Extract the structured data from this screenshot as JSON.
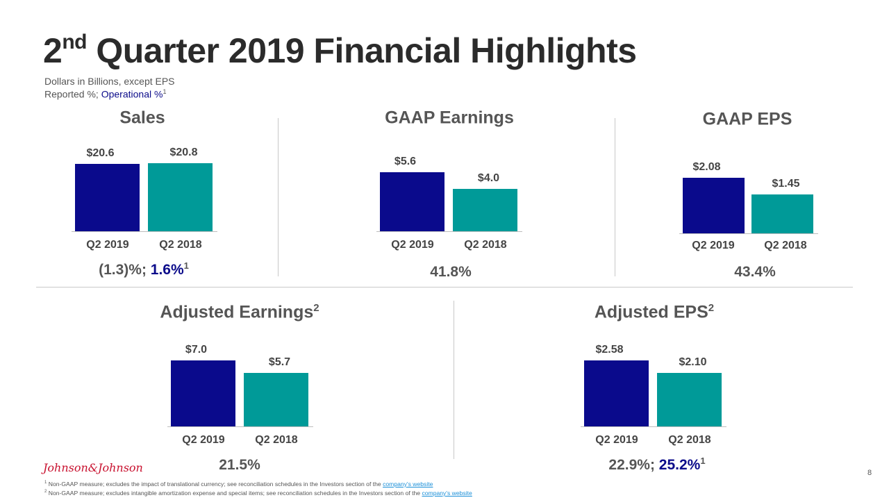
{
  "title": {
    "number": "2",
    "suffix": "nd",
    "text": "Quarter 2019 Financial Highlights"
  },
  "subtitle": {
    "line1": "Dollars in Billions, except EPS",
    "line2_prefix": "Reported %; ",
    "line2_operational": "Operational %",
    "line2_sup": "1"
  },
  "colors": {
    "q2_2019": "#0a0a8c",
    "q2_2018": "#009a98"
  },
  "chart_data": [
    {
      "type": "bar",
      "title": "Sales",
      "title_sup": "",
      "categories": [
        "Q2 2019",
        "Q2 2018"
      ],
      "values": [
        20.6,
        20.8
      ],
      "labels": [
        "$20.6",
        "$20.8"
      ],
      "growth": {
        "reported": "(1.3)%; ",
        "operational": "1.6%",
        "sup": "1"
      }
    },
    {
      "type": "bar",
      "title": "GAAP Earnings",
      "title_sup": "",
      "categories": [
        "Q2 2019",
        "Q2 2018"
      ],
      "values": [
        5.6,
        4.0
      ],
      "labels": [
        "$5.6",
        "$4.0"
      ],
      "growth": {
        "reported": "41.8%",
        "operational": "",
        "sup": ""
      }
    },
    {
      "type": "bar",
      "title": "GAAP EPS",
      "title_sup": "",
      "categories": [
        "Q2 2019",
        "Q2 2018"
      ],
      "values": [
        2.08,
        1.45
      ],
      "labels": [
        "$2.08",
        "$1.45"
      ],
      "growth": {
        "reported": "43.4%",
        "operational": "",
        "sup": ""
      }
    },
    {
      "type": "bar",
      "title": "Adjusted Earnings",
      "title_sup": "2",
      "categories": [
        "Q2 2019",
        "Q2 2018"
      ],
      "values": [
        7.0,
        5.7
      ],
      "labels": [
        "$7.0",
        "$5.7"
      ],
      "growth": {
        "reported": "21.5%",
        "operational": "",
        "sup": ""
      }
    },
    {
      "type": "bar",
      "title": "Adjusted EPS",
      "title_sup": "2",
      "categories": [
        "Q2 2019",
        "Q2 2018"
      ],
      "values": [
        2.58,
        2.1
      ],
      "labels": [
        "$2.58",
        "$2.10"
      ],
      "growth": {
        "reported": "22.9%; ",
        "operational": "25.2%",
        "sup": "1"
      }
    }
  ],
  "footer": {
    "logo": "Johnson&Johnson",
    "page": "8",
    "notes": [
      {
        "sup": "1",
        "text": " Non-GAAP measure; excludes the impact of translational currency; see reconciliation schedules in the Investors section of the ",
        "link": "company's website"
      },
      {
        "sup": "2",
        "text": " Non-GAAP measure; excludes intangible amortization expense and special items; see reconciliation schedules in the Investors section of the ",
        "link": "company's website"
      }
    ]
  }
}
